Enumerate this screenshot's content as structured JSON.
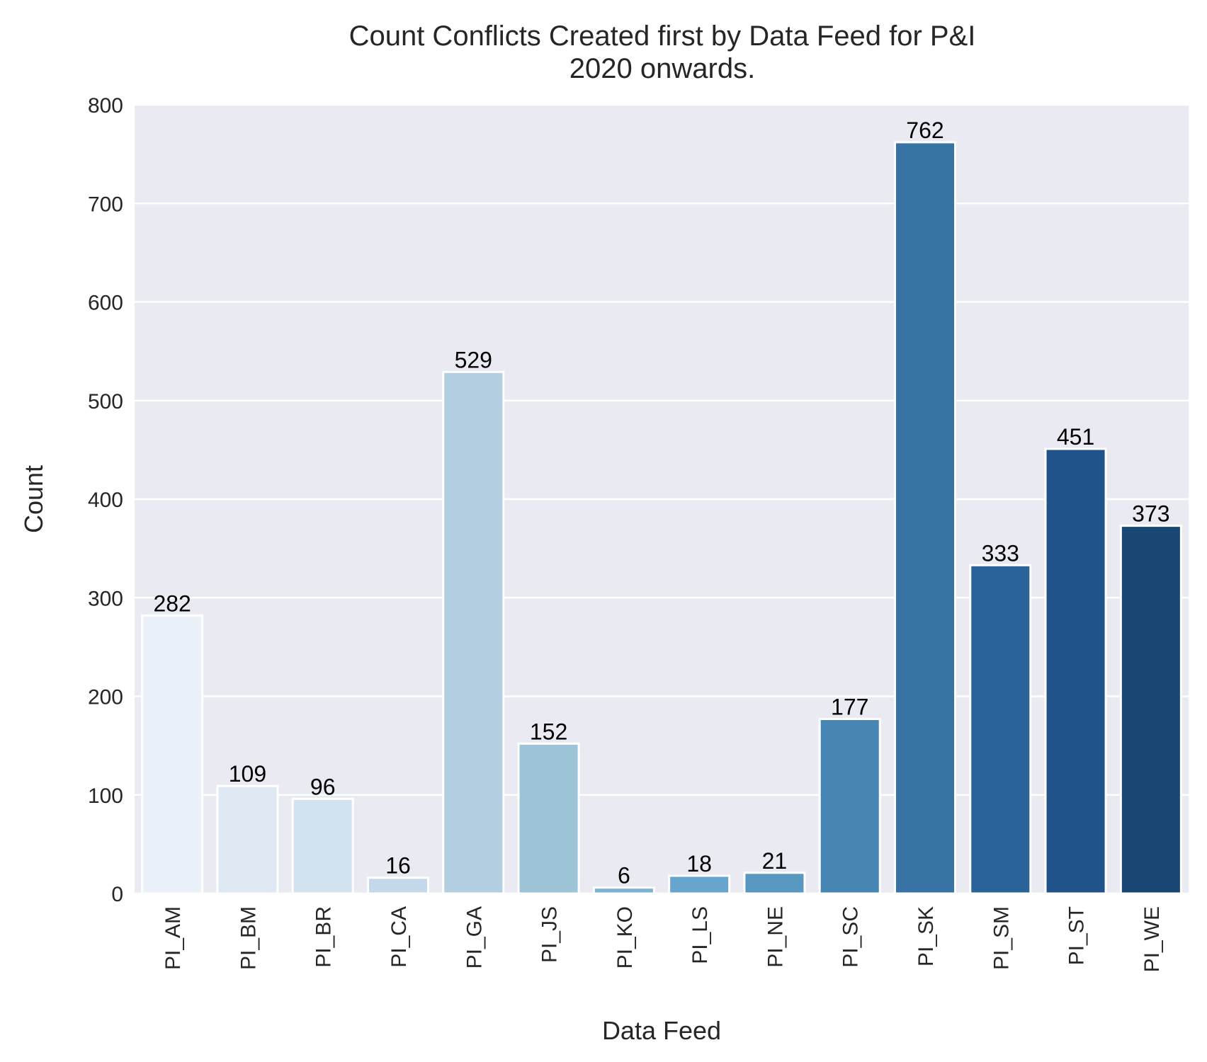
{
  "chart_data": {
    "type": "bar",
    "title": "Count Conflicts Created first by Data Feed for P&I",
    "subtitle": "2020 onwards.",
    "xlabel": "Data Feed",
    "ylabel": "Count",
    "ylim": [
      0,
      800
    ],
    "yticks": [
      0,
      100,
      200,
      300,
      400,
      500,
      600,
      700,
      800
    ],
    "grid": true,
    "background_color": "#eaeaf2",
    "categories": [
      "PI_AM",
      "PI_BM",
      "PI_BR",
      "PI_CA",
      "PI_GA",
      "PI_JS",
      "PI_KO",
      "PI_LS",
      "PI_NE",
      "PI_SC",
      "PI_SK",
      "PI_SM",
      "PI_ST",
      "PI_WE"
    ],
    "values": [
      282,
      109,
      96,
      16,
      529,
      152,
      6,
      18,
      21,
      177,
      762,
      333,
      451,
      373
    ],
    "colors": [
      "#eaf1f9",
      "#dfe9f4",
      "#d2e2ef",
      "#c3d8ea",
      "#b3cee0",
      "#9dc3d7",
      "#7fb2d2",
      "#68a5cd",
      "#5797c0",
      "#4785b2",
      "#3873a5",
      "#2a6399",
      "#1f538a",
      "#1a4674"
    ]
  }
}
